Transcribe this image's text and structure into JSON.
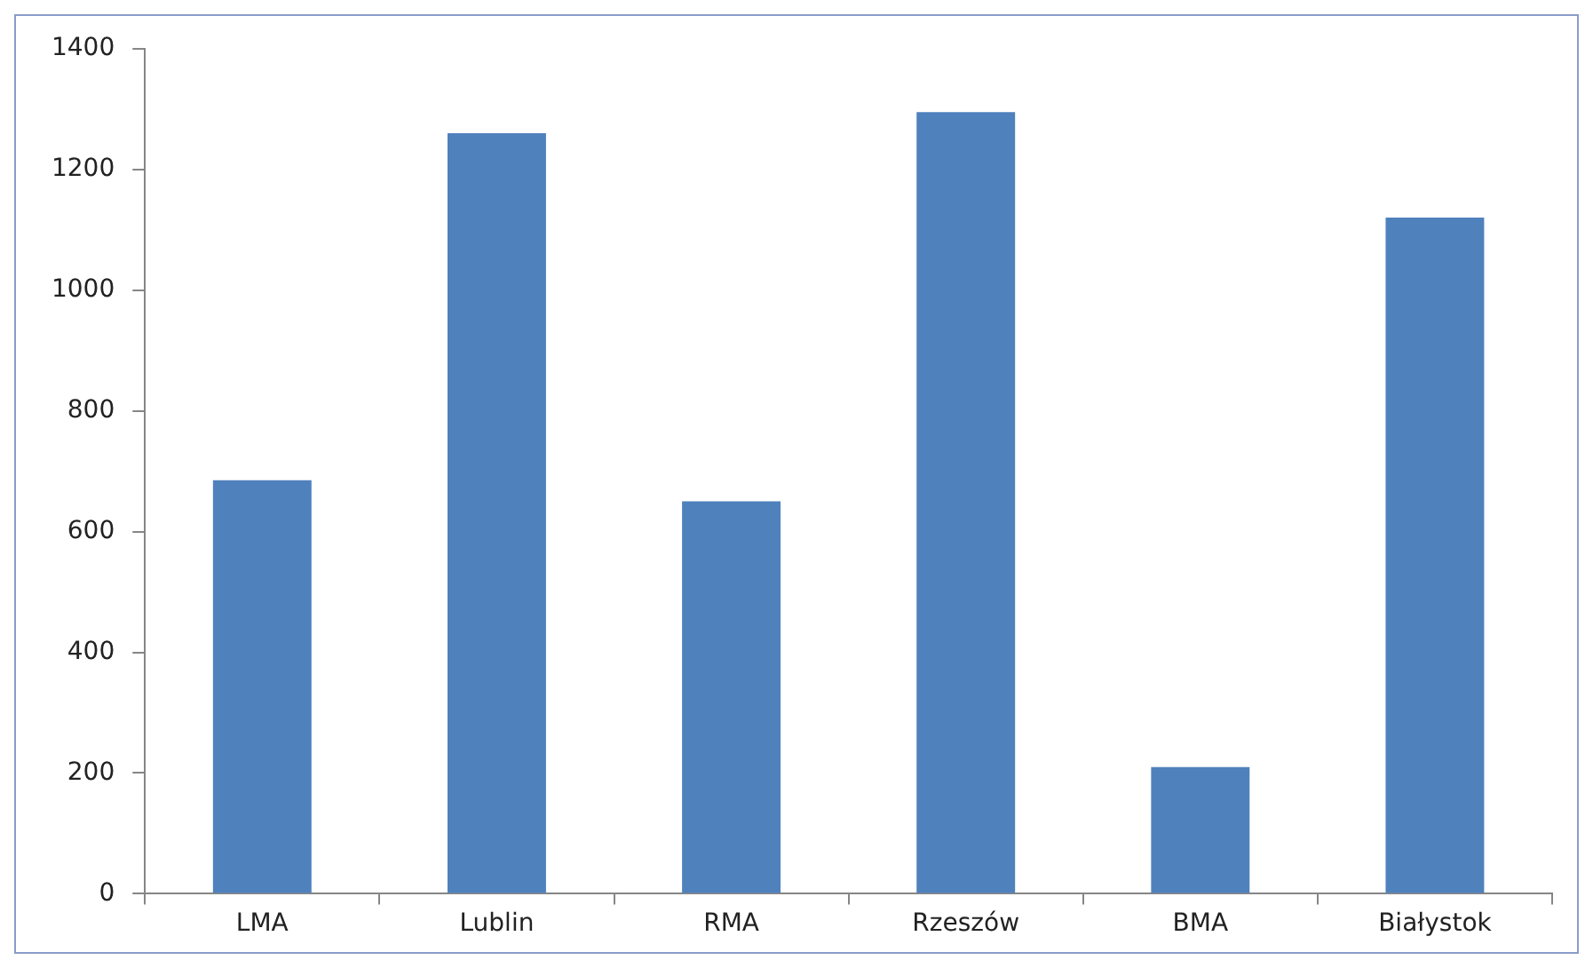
{
  "chart_data": {
    "type": "bar",
    "categories": [
      "LMA",
      "Lublin",
      "RMA",
      "Rzeszów",
      "BMA",
      "Białystok"
    ],
    "values": [
      685,
      1260,
      650,
      1295,
      210,
      1120
    ],
    "color": "#4f81bd",
    "ylim": [
      0,
      1400
    ],
    "yticks": [
      0,
      200,
      400,
      600,
      800,
      1000,
      1200,
      1400
    ],
    "grid": false,
    "legend": false
  }
}
